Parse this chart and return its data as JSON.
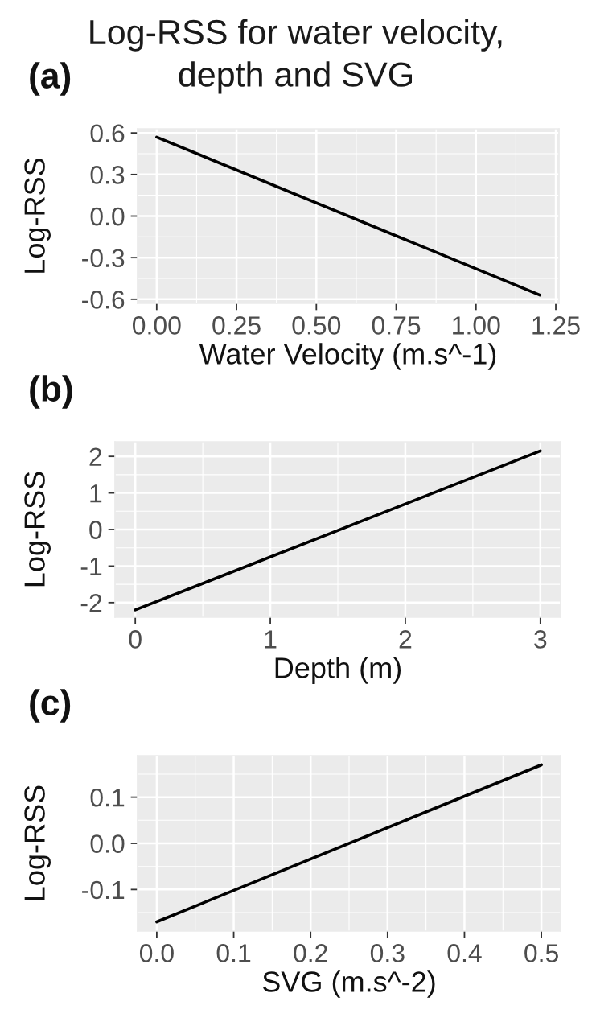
{
  "chart_data": [
    {
      "type": "line",
      "title": "Log-RSS for water velocity,\ndepth and SVG",
      "annotations": [
        "(a)"
      ],
      "xlabel": "Water Velocity (m.s^-1)",
      "ylabel": "Log-RSS",
      "x": [
        0,
        1.2
      ],
      "series": [
        {
          "color": "#000000",
          "values": [
            0.57,
            -0.57
          ]
        }
      ],
      "xlim": [
        -0.06,
        1.26
      ],
      "xticks": [
        {
          "value": 0,
          "label": "0.00"
        },
        0.25,
        {
          "value": 0.5,
          "label": "0.50"
        },
        0.75,
        {
          "value": 1,
          "label": "1.00"
        },
        1.25
      ],
      "ylim": [
        -0.63,
        0.63
      ],
      "yticks": [
        -0.6,
        -0.3,
        {
          "value": 0,
          "label": "0.0"
        },
        0.3,
        0.6
      ],
      "grid": true
    },
    {
      "type": "line",
      "annotations": [
        "(b)"
      ],
      "xlabel": "Depth (m)",
      "ylabel": "Log-RSS",
      "x": [
        0,
        3
      ],
      "series": [
        {
          "color": "#000000",
          "values": [
            -2.2,
            2.15
          ]
        }
      ],
      "xlim": [
        -0.15,
        3.15
      ],
      "xticks": [
        0,
        1,
        2,
        3
      ],
      "ylim": [
        -2.4,
        2.4
      ],
      "yticks": [
        -2,
        -1,
        0,
        1,
        2
      ],
      "grid": true
    },
    {
      "type": "line",
      "annotations": [
        "(c)"
      ],
      "xlabel": "SVG (m.s^-2)",
      "ylabel": "Log-RSS",
      "x": [
        0,
        0.5
      ],
      "series": [
        {
          "color": "#000000",
          "values": [
            -0.17,
            0.17
          ]
        }
      ],
      "xlim": [
        -0.025,
        0.525
      ],
      "xticks": [
        {
          "value": 0,
          "label": "0.0"
        },
        0.1,
        0.2,
        0.3,
        0.4,
        0.5
      ],
      "ylim": [
        -0.19,
        0.19
      ],
      "yticks": [
        -0.1,
        {
          "value": 0,
          "label": "0.0"
        },
        0.1
      ],
      "grid": true
    }
  ]
}
